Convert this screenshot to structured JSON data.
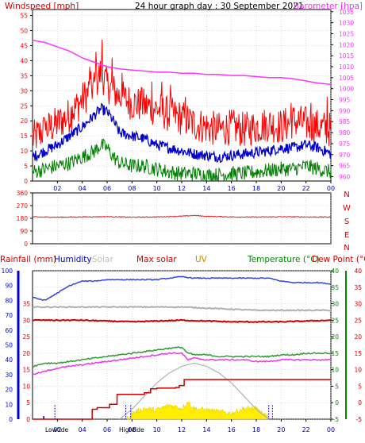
{
  "header": {
    "left_label": "Windspeed [mph]",
    "title": "24 hour graph day : 30 September 2021",
    "right_label": "Barometer [hpa]"
  },
  "colors": {
    "background": "#ffffff",
    "frame": "#000000",
    "grid": "#bbbbbb",
    "wind_gust": "#ff0000",
    "wind_avg": "#0000cc",
    "wind_low": "#008000",
    "barometer": "#ff33ff",
    "wind_dir": "#dd2222",
    "humidity": "#3344dd",
    "solar": "#b0b0b0",
    "max_solar": "#cc0000",
    "uv": "#ffee00",
    "temperature": "#339933",
    "dew_point": "#ee33ee",
    "rainfall": "#cc0000",
    "left_axis_blue": "#0000cc",
    "right_axis_green": "#008800",
    "right_axis_red": "#cc0000"
  },
  "x_ticks": [
    "02",
    "04",
    "06",
    "08",
    "10",
    "12",
    "14",
    "16",
    "18",
    "20",
    "22",
    "00"
  ],
  "compass": [
    "N",
    "W",
    "S",
    "E",
    "N"
  ],
  "bottom_headers": {
    "rainfall": "Rainfall (mm)",
    "humidity": "Humidity",
    "solar": "Solar",
    "max_solar": "Max solar",
    "uv": "UV",
    "temperature": "Temperature (°C)",
    "dew_point": "Dew Point (°C)"
  },
  "markers": {
    "low": "Lowtide",
    "high": "Hightide"
  },
  "chart_data": [
    {
      "type": "line",
      "x_unit": "hours from 00:00",
      "xlim": [
        0,
        24
      ],
      "y_ticks": [
        0,
        5,
        10,
        15,
        20,
        25,
        30,
        35,
        40,
        45,
        50,
        55
      ],
      "ylim": [
        0,
        57
      ],
      "y2_ticks": [
        960,
        965,
        970,
        975,
        980,
        985,
        990,
        995,
        1000,
        1005,
        1010,
        1015,
        1020,
        1025,
        1030,
        1035
      ],
      "y2lim": [
        958,
        1036
      ],
      "wind_gust": {
        "x": [
          0,
          1,
          2,
          3,
          4,
          5,
          5.5,
          6,
          6.5,
          7,
          8,
          9,
          10,
          11,
          12,
          13,
          14,
          15,
          16,
          17,
          18,
          19,
          20,
          21,
          22,
          23,
          24
        ],
        "y": [
          14,
          17,
          19,
          22,
          27,
          32,
          36,
          32,
          30,
          28,
          26,
          25,
          24,
          22,
          21,
          19,
          18,
          17,
          18,
          17,
          18,
          19,
          18,
          20,
          19,
          18,
          17
        ],
        "peaks": [
          [
            5.6,
            47
          ],
          [
            5.1,
            43
          ],
          [
            6.4,
            41
          ],
          [
            4.6,
            38
          ],
          [
            7.2,
            36
          ],
          [
            9.6,
            33
          ],
          [
            10.4,
            33
          ],
          [
            8.8,
            31
          ],
          [
            11.1,
            32
          ],
          [
            12.3,
            28
          ],
          [
            23.7,
            28
          ],
          [
            20.8,
            26
          ],
          [
            22.4,
            26
          ],
          [
            3.2,
            25
          ],
          [
            2.2,
            23
          ],
          [
            1.0,
            20
          ]
        ]
      },
      "wind_avg": {
        "x": [
          0,
          1,
          2,
          3,
          4,
          5,
          5.5,
          6,
          6.5,
          7,
          8,
          9,
          10,
          11,
          12,
          13,
          14,
          15,
          16,
          17,
          18,
          19,
          20,
          21,
          22,
          23,
          24
        ],
        "y": [
          8,
          10,
          12,
          15,
          18,
          22,
          24,
          23,
          20,
          16,
          15,
          14,
          12,
          11,
          10,
          9,
          8.5,
          8,
          8.5,
          9,
          9.5,
          10,
          11,
          11,
          12,
          11,
          9
        ]
      },
      "wind_low": {
        "x": [
          0,
          1,
          2,
          3,
          4,
          5,
          5.5,
          6,
          6.5,
          7,
          8,
          9,
          10,
          11,
          12,
          13,
          14,
          15,
          16,
          17,
          18,
          19,
          20,
          21,
          22,
          23,
          24
        ],
        "y": [
          3,
          4,
          5,
          6,
          8,
          10,
          12,
          11,
          8,
          6,
          5,
          5,
          4,
          3,
          2.5,
          2.5,
          2,
          2,
          2.5,
          2.5,
          3,
          3.5,
          4,
          4,
          5,
          4,
          3
        ]
      },
      "barometer": {
        "x": [
          0,
          1,
          2,
          3,
          4,
          5,
          6,
          7,
          8,
          9,
          10,
          11,
          12,
          13,
          14,
          15,
          16,
          17,
          18,
          19,
          20,
          21,
          22,
          23,
          24
        ],
        "y": [
          1022,
          1021,
          1019,
          1017,
          1014,
          1012,
          1010,
          1009,
          1008.5,
          1008,
          1007.5,
          1007.5,
          1007,
          1007,
          1006.5,
          1006.5,
          1006,
          1006,
          1005.5,
          1005,
          1005,
          1004.5,
          1003.5,
          1002.5,
          1002
        ]
      }
    },
    {
      "type": "line",
      "xlim": [
        0,
        24
      ],
      "y_ticks": [
        0,
        90,
        180,
        270,
        360
      ],
      "ylim": [
        0,
        360
      ],
      "wind_direction": {
        "x": [
          0,
          2,
          4,
          6,
          8,
          10,
          12,
          13,
          14,
          16,
          18,
          20,
          22,
          24
        ],
        "y": [
          190,
          188,
          190,
          192,
          188,
          190,
          195,
          200,
          194,
          190,
          189,
          191,
          190,
          189
        ]
      }
    },
    {
      "type": "line",
      "xlim": [
        0,
        24
      ],
      "left_ticks_rain": [
        0,
        5,
        10,
        15,
        20,
        25,
        30,
        35
      ],
      "left_ticks_humidity": [
        0,
        10,
        20,
        30,
        40,
        50,
        60,
        70,
        80,
        90,
        100
      ],
      "right_ticks": [
        -5,
        0,
        5,
        10,
        15,
        20,
        25,
        30,
        35,
        40
      ],
      "temp_lim": [
        -5,
        40
      ],
      "humidity": {
        "x": [
          0,
          1,
          2,
          3,
          4,
          5,
          6,
          7,
          8,
          9,
          10,
          11,
          12,
          13,
          14,
          15,
          16,
          17,
          18,
          19,
          20,
          21,
          22,
          23,
          24
        ],
        "y": [
          82,
          80,
          85,
          90,
          93,
          93,
          94,
          94,
          94,
          94,
          94,
          95,
          96,
          95,
          95,
          95,
          95,
          95,
          95,
          95,
          93,
          92,
          92,
          92,
          91
        ]
      },
      "solar": {
        "x": [
          0,
          6,
          12,
          18,
          24
        ],
        "y": [
          29,
          29,
          29,
          28,
          28
        ]
      },
      "max_solar_line": {
        "x": [
          0,
          4,
          8,
          12,
          16,
          20,
          24
        ],
        "y": [
          25,
          25,
          24.5,
          25,
          24.5,
          24.5,
          25
        ]
      },
      "max_solar_curve": {
        "x": [
          7,
          8,
          9,
          10,
          11,
          12,
          13,
          14,
          15,
          16,
          17,
          18,
          19
        ],
        "y": [
          -5,
          -2,
          2,
          6,
          9,
          11,
          12,
          11,
          9,
          6,
          2,
          -2,
          -5
        ]
      },
      "uv": {
        "x": [
          7.6,
          8,
          9,
          10,
          11,
          12,
          12.5,
          13,
          14,
          15,
          16,
          17,
          18,
          19
        ],
        "y": [
          -5,
          -3.5,
          -2,
          -2.5,
          -1,
          -2,
          0,
          -2,
          -2.5,
          -3,
          -3.5,
          -2,
          -2,
          -5
        ]
      },
      "temperature": {
        "x": [
          0,
          1,
          2,
          3,
          4,
          5,
          6,
          7,
          8,
          9,
          10,
          11,
          12,
          12.5,
          13,
          14,
          15,
          16,
          17,
          18,
          19,
          20,
          21,
          22,
          23,
          24
        ],
        "y": [
          11,
          12,
          12,
          12.5,
          13,
          13.5,
          14,
          14.5,
          15,
          15.5,
          16,
          16.5,
          16.8,
          15,
          14.5,
          14.5,
          14,
          14,
          14,
          14,
          14,
          14.5,
          14.5,
          15,
          15,
          15
        ]
      },
      "dew_point": {
        "x": [
          0,
          1,
          2,
          3,
          4,
          5,
          6,
          7,
          8,
          9,
          10,
          11,
          12,
          12.5,
          13,
          14,
          15,
          16,
          17,
          18,
          19,
          20,
          21,
          22,
          23,
          24
        ],
        "y": [
          8.5,
          9.5,
          10.5,
          11,
          11.5,
          12,
          12.5,
          13,
          13.5,
          14,
          14.5,
          15,
          15,
          13,
          13.5,
          13,
          13,
          13,
          13,
          12.5,
          12.5,
          13,
          13,
          13,
          13,
          13
        ]
      },
      "rainfall": {
        "x": [
          0,
          4,
          4.8,
          5.2,
          6.2,
          6.8,
          9.0,
          9.5,
          10.0,
          11.5,
          11.8,
          12.2,
          24
        ],
        "y": [
          -5,
          -5,
          -2,
          -1.5,
          -0.5,
          2.5,
          3.0,
          4.2,
          4.4,
          4.6,
          5.2,
          7.0,
          7.0
        ]
      },
      "lowtide_x": [
        1.8,
        19.3
      ],
      "hightide_x": [
        7.5,
        7.9,
        19.0
      ],
      "rain_ticks_x": [
        0.9
      ]
    }
  ]
}
